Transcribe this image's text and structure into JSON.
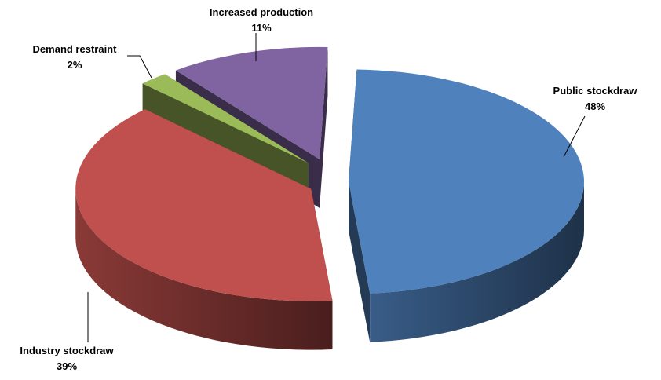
{
  "chart_data": {
    "type": "pie",
    "title": "",
    "style": "3d-exploded",
    "slices": [
      {
        "label": "Public stockdraw",
        "pct_label": "48%",
        "value": 48,
        "color": "#4f81bd"
      },
      {
        "label": "Industry stockdraw",
        "pct_label": "39%",
        "value": 39,
        "color": "#c0504d"
      },
      {
        "label": "Demand restraint",
        "pct_label": "2%",
        "value": 2,
        "color": "#9bbb59"
      },
      {
        "label": "Increased production",
        "pct_label": "11%",
        "value": 11,
        "color": "#8064a2"
      }
    ]
  }
}
